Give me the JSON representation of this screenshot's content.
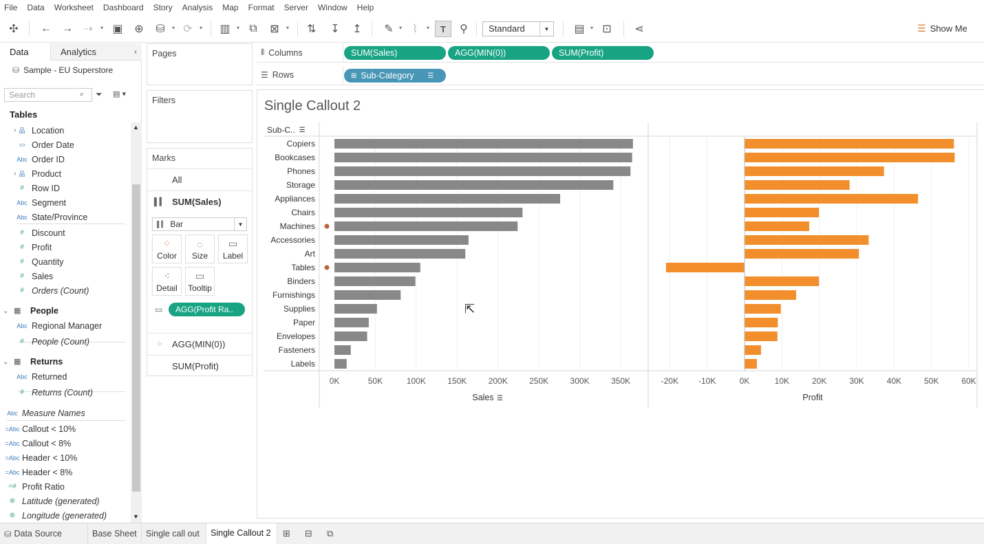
{
  "menu": [
    "File",
    "Data",
    "Worksheet",
    "Dashboard",
    "Story",
    "Analysis",
    "Map",
    "Format",
    "Server",
    "Window",
    "Help"
  ],
  "toolbar": {
    "fit_value": "Standard",
    "show_me": "Show Me"
  },
  "data_pane": {
    "tab_data": "Data",
    "tab_analytics": "Analytics",
    "datasource": "Sample - EU Superstore",
    "search_placeholder": "Search",
    "tables_title": "Tables",
    "orders_fields": [
      {
        "label": "Location",
        "type": "hier",
        "exp": true
      },
      {
        "label": "Order Date",
        "type": "date"
      },
      {
        "label": "Order ID",
        "type": "abc"
      },
      {
        "label": "Product",
        "type": "hier",
        "exp": true
      },
      {
        "label": "Row ID",
        "type": "num"
      },
      {
        "label": "Segment",
        "type": "abc"
      },
      {
        "label": "State/Province",
        "type": "abc"
      },
      {
        "label": "Discount",
        "type": "num"
      },
      {
        "label": "Profit",
        "type": "num"
      },
      {
        "label": "Quantity",
        "type": "num"
      },
      {
        "label": "Sales",
        "type": "num"
      },
      {
        "label": "Orders (Count)",
        "type": "num",
        "italic": true
      }
    ],
    "people_title": "People",
    "people_fields": [
      {
        "label": "Regional Manager",
        "type": "abc"
      },
      {
        "label": "People (Count)",
        "type": "num",
        "italic": true
      }
    ],
    "returns_title": "Returns",
    "returns_fields": [
      {
        "label": "Returned",
        "type": "abc"
      },
      {
        "label": "Returns (Count)",
        "type": "num",
        "italic": true
      }
    ],
    "extra_fields": [
      {
        "label": "Measure Names",
        "type": "abc",
        "italic": true
      },
      {
        "label": "Callout < 10%",
        "type": "calc-abc"
      },
      {
        "label": "Callout < 8%",
        "type": "calc-abc"
      },
      {
        "label": "Header < 10%",
        "type": "calc-abc"
      },
      {
        "label": "Header < 8%",
        "type": "calc-abc"
      },
      {
        "label": "Profit Ratio",
        "type": "calc-num"
      },
      {
        "label": "Latitude (generated)",
        "type": "geo",
        "italic": true
      },
      {
        "label": "Longitude (generated)",
        "type": "geo",
        "italic": true
      }
    ]
  },
  "cards": {
    "pages": "Pages",
    "filters": "Filters",
    "marks": "Marks",
    "marks_all": "All",
    "marks_sales": "SUM(Sales)",
    "mark_type": "Bar",
    "btn_color": "Color",
    "btn_size": "Size",
    "btn_label": "Label",
    "btn_detail": "Detail",
    "btn_tooltip": "Tooltip",
    "tooltip_pill": "AGG(Profit Ra..",
    "marks_min0": "AGG(MIN(0))",
    "marks_profit": "SUM(Profit)"
  },
  "shelves": {
    "columns_label": "Columns",
    "rows_label": "Rows",
    "columns_pills": [
      "SUM(Sales)",
      "AGG(MIN(0))",
      "SUM(Profit)"
    ],
    "rows_pill": "Sub-Category"
  },
  "view": {
    "title": "Single Callout 2",
    "row_header": "Sub-C.."
  },
  "chart_data": {
    "type": "bar",
    "categories": [
      "Copiers",
      "Bookcases",
      "Phones",
      "Storage",
      "Appliances",
      "Chairs",
      "Machines",
      "Accessories",
      "Art",
      "Tables",
      "Binders",
      "Furnishings",
      "Supplies",
      "Paper",
      "Envelopes",
      "Fasteners",
      "Labels"
    ],
    "callout_categories": [
      "Machines",
      "Tables"
    ],
    "series": [
      {
        "name": "Sales",
        "axis": "Sales",
        "color": "#888888",
        "values": [
          365000,
          364000,
          362000,
          341000,
          276000,
          230000,
          224000,
          164000,
          160000,
          105000,
          99000,
          81000,
          52000,
          42000,
          40000,
          20000,
          15000
        ]
      },
      {
        "name": "Profit",
        "axis": "Profit",
        "color": "#f28e2b",
        "values": [
          56000,
          56200,
          37300,
          28100,
          46400,
          19900,
          17300,
          33200,
          30600,
          -21000,
          19900,
          13800,
          9700,
          8900,
          8800,
          4400,
          3300
        ]
      }
    ],
    "sales_axis": {
      "label": "Sales",
      "range": [
        -18000,
        370000
      ],
      "ticks": [
        0,
        50000,
        100000,
        150000,
        200000,
        250000,
        300000,
        350000
      ],
      "tick_labels": [
        "0K",
        "50K",
        "100K",
        "150K",
        "200K",
        "250K",
        "300K",
        "350K"
      ]
    },
    "profit_axis": {
      "label": "Profit",
      "range": [
        -21000,
        60000
      ],
      "ticks": [
        -20000,
        -10000,
        0,
        10000,
        20000,
        30000,
        40000,
        50000,
        60000
      ],
      "tick_labels": [
        "-20K",
        "-10K",
        "0K",
        "10K",
        "20K",
        "30K",
        "40K",
        "50K",
        "60K"
      ]
    },
    "callout_color": "#c0603a",
    "grid": true
  },
  "bottom_tabs": {
    "datasource": "Data Source",
    "sheets": [
      "Base Sheet",
      "Single call out",
      "Single Callout 2"
    ],
    "active": "Single Callout 2"
  }
}
